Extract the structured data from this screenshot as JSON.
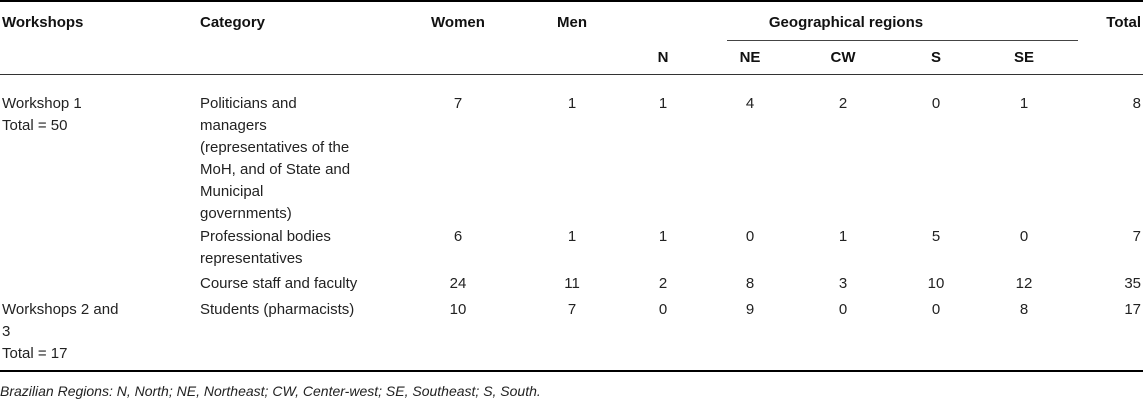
{
  "table": {
    "headers": {
      "workshops": "Workshops",
      "category": "Category",
      "women": "Women",
      "men": "Men",
      "geo_regions": "Geographical regions",
      "total": "Total",
      "regions": [
        "N",
        "NE",
        "CW",
        "S",
        "SE"
      ]
    },
    "rows": [
      {
        "workshop": "Workshop 1\nTotal = 50",
        "category": "Politicians and\nmanagers\n(representatives of the\nMoH, and of State and\nMunicipal\ngovernments)",
        "women": "7",
        "men": "1",
        "regions": [
          "1",
          "4",
          "2",
          "0",
          "1"
        ],
        "total": "8"
      },
      {
        "workshop": "",
        "category": "Professional bodies\nrepresentatives",
        "women": "6",
        "men": "1",
        "regions": [
          "1",
          "0",
          "1",
          "5",
          "0"
        ],
        "total": "7"
      },
      {
        "workshop": "",
        "category": "Course staff and faculty",
        "women": "24",
        "men": "11",
        "regions": [
          "2",
          "8",
          "3",
          "10",
          "12"
        ],
        "total": "35"
      },
      {
        "workshop": "Workshops 2 and\n3\nTotal = 17",
        "category": "Students (pharmacists)",
        "women": "10",
        "men": "7",
        "regions": [
          "0",
          "9",
          "0",
          "0",
          "8"
        ],
        "total": "17"
      }
    ]
  },
  "footnote": "Brazilian Regions: N, North; NE, Northeast; CW, Center-west; SE, Southeast; S, South."
}
